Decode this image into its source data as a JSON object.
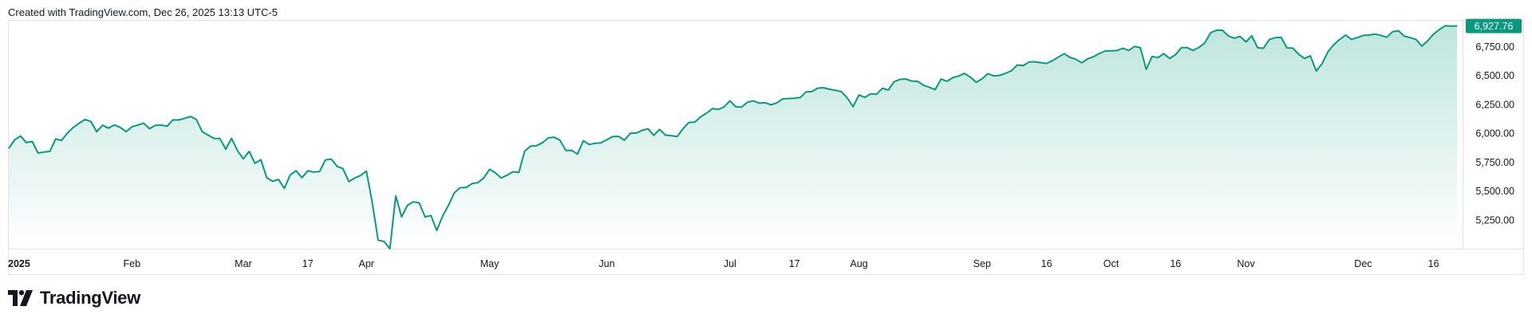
{
  "caption": "Created with TradingView.com, Dec 26, 2025 13:13 UTC-5",
  "brand": {
    "name": "TradingView"
  },
  "colors": {
    "line": "#089981",
    "fill_top": "#bfe5dd",
    "fill_bottom": "#ffffff",
    "label_bg": "#089981",
    "border": "#e0e3eb"
  },
  "chart_data": {
    "type": "area",
    "title": "",
    "xlabel": "",
    "ylabel": "",
    "ylim": [
      5000,
      6980
    ],
    "y_ticks": [
      {
        "value": 5250,
        "label": "5,250.00"
      },
      {
        "value": 5500,
        "label": "5,500.00"
      },
      {
        "value": 5750,
        "label": "5,750.00"
      },
      {
        "value": 6000,
        "label": "6,000.00"
      },
      {
        "value": 6250,
        "label": "6,250.00"
      },
      {
        "value": 6500,
        "label": "6,500.00"
      },
      {
        "value": 6750,
        "label": "6,750.00"
      }
    ],
    "x_ticks": [
      {
        "i": 0,
        "label": "2025",
        "bold": true
      },
      {
        "i": 21,
        "label": "Feb"
      },
      {
        "i": 40,
        "label": "Mar"
      },
      {
        "i": 51,
        "label": "17"
      },
      {
        "i": 61,
        "label": "Apr"
      },
      {
        "i": 82,
        "label": "May"
      },
      {
        "i": 102,
        "label": "Jun"
      },
      {
        "i": 123,
        "label": "Jul"
      },
      {
        "i": 134,
        "label": "17"
      },
      {
        "i": 145,
        "label": "Aug"
      },
      {
        "i": 166,
        "label": "Sep"
      },
      {
        "i": 177,
        "label": "16"
      },
      {
        "i": 188,
        "label": "Oct"
      },
      {
        "i": 199,
        "label": "16"
      },
      {
        "i": 211,
        "label": "Nov"
      },
      {
        "i": 231,
        "label": "Dec"
      },
      {
        "i": 243,
        "label": "16"
      }
    ],
    "last_value": {
      "value": 6927.76,
      "label": "6,927.76"
    },
    "series": [
      {
        "values": [
          5868,
          5942,
          5975,
          5918,
          5928,
          5828,
          5836,
          5842,
          5949,
          5937,
          6001,
          6049,
          6086,
          6118,
          6101,
          6013,
          6068,
          6044,
          6071,
          6050,
          6013,
          6055,
          6070,
          6086,
          6039,
          6068,
          6069,
          6060,
          6115,
          6114,
          6129,
          6144,
          6118,
          6013,
          5983,
          5955,
          5954,
          5862,
          5955,
          5849,
          5778,
          5842,
          5739,
          5770,
          5615,
          5583,
          5599,
          5522,
          5639,
          5675,
          5614,
          5675,
          5663,
          5667,
          5768,
          5776,
          5712,
          5693,
          5581,
          5611,
          5633,
          5671,
          5396,
          5074,
          5062,
          5000,
          5457,
          5275,
          5376,
          5406,
          5396,
          5275,
          5287,
          5158,
          5283,
          5376,
          5485,
          5528,
          5529,
          5563,
          5571,
          5612,
          5687,
          5656,
          5611,
          5637,
          5666,
          5660,
          5845,
          5887,
          5891,
          5916,
          5959,
          5965,
          5940,
          5850,
          5851,
          5819,
          5935,
          5902,
          5912,
          5916,
          5943,
          5970,
          5972,
          5939,
          5998,
          6001,
          6023,
          6039,
          5981,
          6033,
          5983,
          5978,
          5971,
          6038,
          6093,
          6095,
          6141,
          6173,
          6212,
          6205,
          6227,
          6279,
          6229,
          6225,
          6268,
          6280,
          6260,
          6263,
          6245,
          6262,
          6297,
          6300,
          6302,
          6309,
          6358,
          6360,
          6390,
          6393,
          6380,
          6371,
          6360,
          6305,
          6229,
          6330,
          6310,
          6340,
          6336,
          6389,
          6373,
          6445,
          6465,
          6469,
          6450,
          6449,
          6415,
          6398,
          6376,
          6468,
          6449,
          6480,
          6495,
          6517,
          6485,
          6440,
          6470,
          6515,
          6496,
          6500,
          6518,
          6540,
          6590,
          6584,
          6616,
          6618,
          6610,
          6603,
          6627,
          6658,
          6688,
          6656,
          6640,
          6609,
          6643,
          6661,
          6690,
          6711,
          6712,
          6715,
          6735,
          6716,
          6751,
          6739,
          6552,
          6664,
          6654,
          6688,
          6647,
          6680,
          6740,
          6740,
          6716,
          6743,
          6781,
          6870,
          6891,
          6890,
          6841,
          6822,
          6838,
          6790,
          6842,
          6739,
          6735,
          6812,
          6826,
          6829,
          6738,
          6736,
          6683,
          6647,
          6669,
          6538,
          6602,
          6705,
          6766,
          6812,
          6849,
          6812,
          6827,
          6846,
          6849,
          6858,
          6847,
          6830,
          6878,
          6887,
          6840,
          6827,
          6812,
          6753,
          6800,
          6857,
          6897,
          6930,
          6927,
          6928
        ]
      }
    ]
  }
}
